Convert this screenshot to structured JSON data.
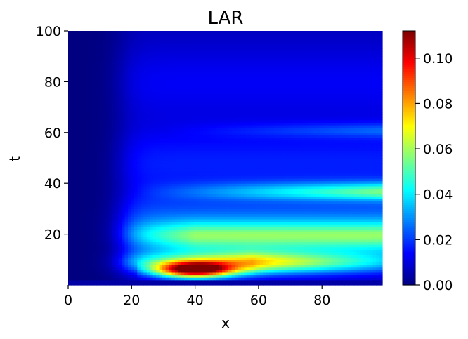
{
  "chart_data": {
    "type": "heatmap",
    "title": "LAR",
    "xlabel": "x",
    "ylabel": "t",
    "xlim": [
      0,
      99
    ],
    "ylim": [
      0,
      100
    ],
    "xticks": [
      0,
      20,
      40,
      60,
      80
    ],
    "xtick_labels": [
      "0",
      "20",
      "40",
      "60",
      "80"
    ],
    "yticks": [
      20,
      40,
      60,
      80,
      100
    ],
    "ytick_labels": [
      "20",
      "40",
      "60",
      "80",
      "100"
    ],
    "colorbar": {
      "min": 0.0,
      "max": 0.112,
      "ticks": [
        0.0,
        0.02,
        0.04,
        0.06,
        0.08,
        0.1
      ],
      "tick_labels": [
        "0.00",
        "0.02",
        "0.04",
        "0.06",
        "0.08",
        "0.10"
      ]
    },
    "colormap": "jet",
    "grid": false,
    "peak": {
      "x": 40,
      "t": 6,
      "value": 0.112
    }
  }
}
